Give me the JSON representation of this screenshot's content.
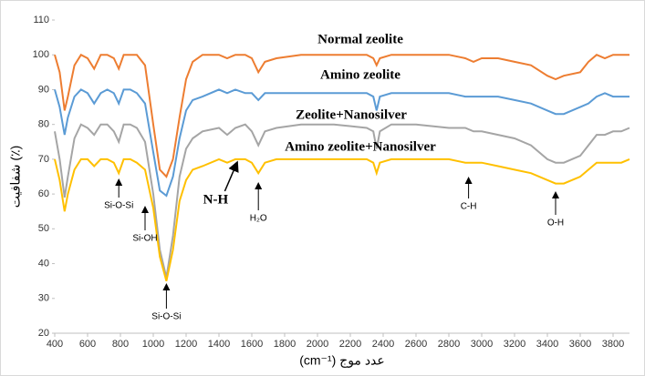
{
  "chart_data": {
    "type": "line",
    "xlabel": "(cm⁻¹) عدد موج",
    "ylabel": "شفافیت (٪)",
    "x": [
      400,
      430,
      460,
      480,
      520,
      560,
      600,
      640,
      680,
      720,
      760,
      790,
      820,
      860,
      900,
      950,
      1000,
      1040,
      1080,
      1120,
      1160,
      1200,
      1240,
      1300,
      1400,
      1450,
      1500,
      1560,
      1600,
      1640,
      1680,
      1750,
      1900,
      2100,
      2300,
      2340,
      2360,
      2380,
      2450,
      2600,
      2800,
      2900,
      2950,
      3000,
      3100,
      3200,
      3300,
      3400,
      3450,
      3500,
      3600,
      3650,
      3700,
      3750,
      3800,
      3850,
      3900
    ],
    "series": [
      {
        "name": "Normal zeolite",
        "color": "#ED7D31",
        "values": [
          100,
          95,
          84,
          88,
          97,
          100,
          99,
          96,
          100,
          100,
          99,
          96,
          100,
          100,
          100,
          97,
          80,
          67,
          65,
          70,
          82,
          93,
          98,
          100,
          100,
          99,
          100,
          100,
          99,
          95,
          98,
          99,
          100,
          100,
          100,
          99,
          97,
          99,
          100,
          100,
          100,
          99,
          98,
          99,
          99,
          98,
          97,
          94,
          93,
          94,
          95,
          98,
          100,
          99,
          100,
          100,
          100
        ]
      },
      {
        "name": "Amino zeolite",
        "color": "#5B9BD5",
        "values": [
          90,
          85,
          77,
          82,
          88,
          90,
          89,
          86,
          89,
          90,
          89,
          86,
          90,
          90,
          89,
          86,
          72,
          61,
          59.5,
          65,
          76,
          84,
          87,
          88,
          90,
          89,
          90,
          89,
          89,
          87,
          89,
          89,
          89,
          89,
          89,
          88,
          84,
          88,
          89,
          89,
          89,
          88,
          88,
          88,
          88,
          87,
          86,
          84,
          83,
          83,
          85,
          86,
          88,
          89,
          88,
          88,
          88
        ]
      },
      {
        "name": "Zeolite+Nanosilver",
        "color": "#A5A5A5",
        "values": [
          78,
          70,
          59,
          65,
          76,
          80,
          79,
          77,
          80,
          80,
          78,
          75,
          80,
          80,
          79,
          75,
          60,
          44,
          36,
          48,
          65,
          73,
          76,
          78,
          79,
          77,
          79,
          80,
          78,
          74,
          78,
          79,
          80,
          80,
          79,
          78,
          73,
          78,
          80,
          80,
          79,
          79,
          78,
          78,
          77,
          76,
          74,
          70,
          69,
          69,
          71,
          74,
          77,
          77,
          78,
          78,
          79
        ]
      },
      {
        "name": "Amino zeolite+Nanosilver",
        "color": "#FFC000",
        "values": [
          70,
          64,
          55,
          60,
          67,
          70,
          70,
          68,
          70,
          70,
          69,
          66,
          70,
          70,
          69,
          67,
          56,
          42,
          35,
          44,
          58,
          64,
          67,
          68,
          70,
          69,
          70,
          70,
          69,
          66,
          69,
          70,
          70,
          70,
          70,
          69,
          66,
          69,
          70,
          70,
          70,
          69,
          69,
          69,
          68,
          67,
          66,
          64,
          63,
          63,
          65,
          67,
          69,
          69,
          69,
          69,
          70
        ]
      }
    ],
    "annotations": [
      {
        "text": "Si-O-Si",
        "x": 790
      },
      {
        "text": "Si-OH",
        "x": 950
      },
      {
        "text": "Si-O-Si",
        "x": 1080
      },
      {
        "text": "N-H",
        "x": 1480
      },
      {
        "text": "H₂O",
        "x": 1640
      },
      {
        "text": "C-H",
        "x": 2920
      },
      {
        "text": "O-H",
        "x": 3450
      }
    ],
    "xlim": [
      400,
      3900
    ],
    "xticks": [
      400,
      600,
      800,
      1000,
      1200,
      1400,
      1600,
      1800,
      2000,
      2200,
      2400,
      2600,
      2800,
      3000,
      3200,
      3400,
      3600,
      3800
    ],
    "ylim": [
      20,
      110
    ],
    "yticks": [
      20,
      30,
      40,
      50,
      60,
      70,
      80,
      90,
      100,
      110
    ],
    "grid": false
  }
}
